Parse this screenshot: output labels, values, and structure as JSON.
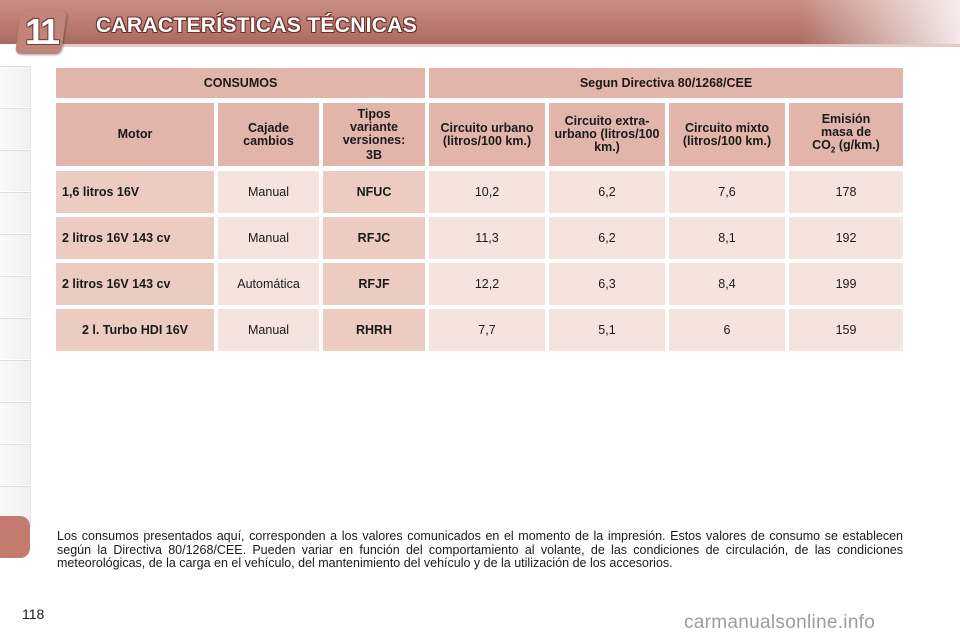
{
  "header": {
    "chapter_number": "11",
    "title": "CARACTERÍSTICAS TÉCNICAS"
  },
  "table": {
    "group_left": "CONSUMOS",
    "group_right": "Segun Directiva 80/1268/CEE",
    "columns": {
      "motor": "Motor",
      "gearbox": "Cajade cambios",
      "variant": "Tipos variante versiones:",
      "variant_code": "3B",
      "urban": "Circuito urbano (litros/100 km.)",
      "extra_urban": "Circuito extra-urbano (litros/100 km.)",
      "mixed": "Circuito mixto (litros/100 km.)",
      "emission_a": "Emisión masa de",
      "emission_co": "CO",
      "emission_sub": "2",
      "emission_unit": "(g/km.)"
    },
    "rows": [
      {
        "engine": "1,6 litros 16V",
        "gearbox": "Manual",
        "variant": "NFUC",
        "urban": "10,2",
        "extra_urban": "6,2",
        "mixed": "7,6",
        "co2": "178"
      },
      {
        "engine": "2 litros 16V 143 cv",
        "gearbox": "Manual",
        "variant": "RFJC",
        "urban": "11,3",
        "extra_urban": "6,2",
        "mixed": "8,1",
        "co2": "192"
      },
      {
        "engine": "2 litros 16V 143 cv",
        "gearbox": "Automática",
        "variant": "RFJF",
        "urban": "12,2",
        "extra_urban": "6,3",
        "mixed": "8,4",
        "co2": "199"
      },
      {
        "engine": "2 l. Turbo HDI 16V",
        "gearbox": "Manual",
        "variant": "RHRH",
        "urban": "7,7",
        "extra_urban": "5,1",
        "mixed": "6",
        "co2": "159"
      }
    ]
  },
  "note": "Los consumos presentados aquí, corresponden a los valores comunicados en el momento de la impresión. Estos valores de consumo se establecen según la Directiva 80/1268/CEE. Pueden variar en función del comportamiento al volante, de las condiciones de circulación, de las condiciones meteorológicas, de la carga en el vehículo, del mantenimiento del vehículo y de la utilización de los accesorios.",
  "page_number": "118",
  "watermark": "carmanualsonline.info"
}
